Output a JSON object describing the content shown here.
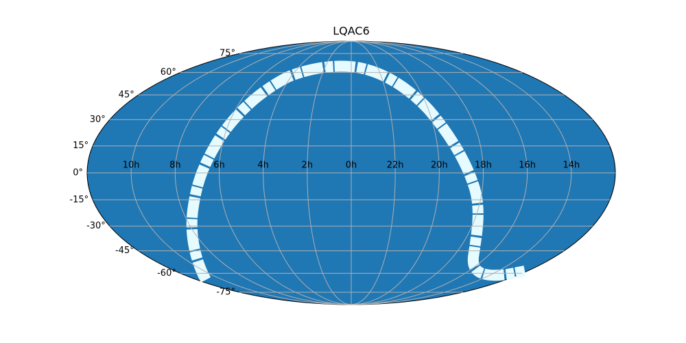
{
  "chart_data": {
    "type": "mollweide",
    "title": "LQAC6",
    "xlim": [
      -180,
      180
    ],
    "ylim": [
      -90,
      90
    ],
    "xticks": [
      {
        "value": -150,
        "label": "10h"
      },
      {
        "value": -120,
        "label": "8h"
      },
      {
        "value": -90,
        "label": "6h"
      },
      {
        "value": -60,
        "label": "4h"
      },
      {
        "value": -30,
        "label": "2h"
      },
      {
        "value": 0,
        "label": "0h"
      },
      {
        "value": 30,
        "label": "22h"
      },
      {
        "value": 60,
        "label": "20h"
      },
      {
        "value": 90,
        "label": "18h"
      },
      {
        "value": 120,
        "label": "16h"
      },
      {
        "value": 150,
        "label": "14h"
      }
    ],
    "yticks": [
      {
        "value": -75,
        "label": "-75°"
      },
      {
        "value": -60,
        "label": "-60°"
      },
      {
        "value": -45,
        "label": "-45°"
      },
      {
        "value": -30,
        "label": "-30°"
      },
      {
        "value": -15,
        "label": "-15°"
      },
      {
        "value": 0,
        "label": "0°"
      },
      {
        "value": 15,
        "label": "15°"
      },
      {
        "value": 30,
        "label": "30°"
      },
      {
        "value": 45,
        "label": "45°"
      },
      {
        "value": 60,
        "label": "60°"
      },
      {
        "value": 75,
        "label": "75°"
      }
    ],
    "grid": true,
    "color": "#1f77b4"
  }
}
